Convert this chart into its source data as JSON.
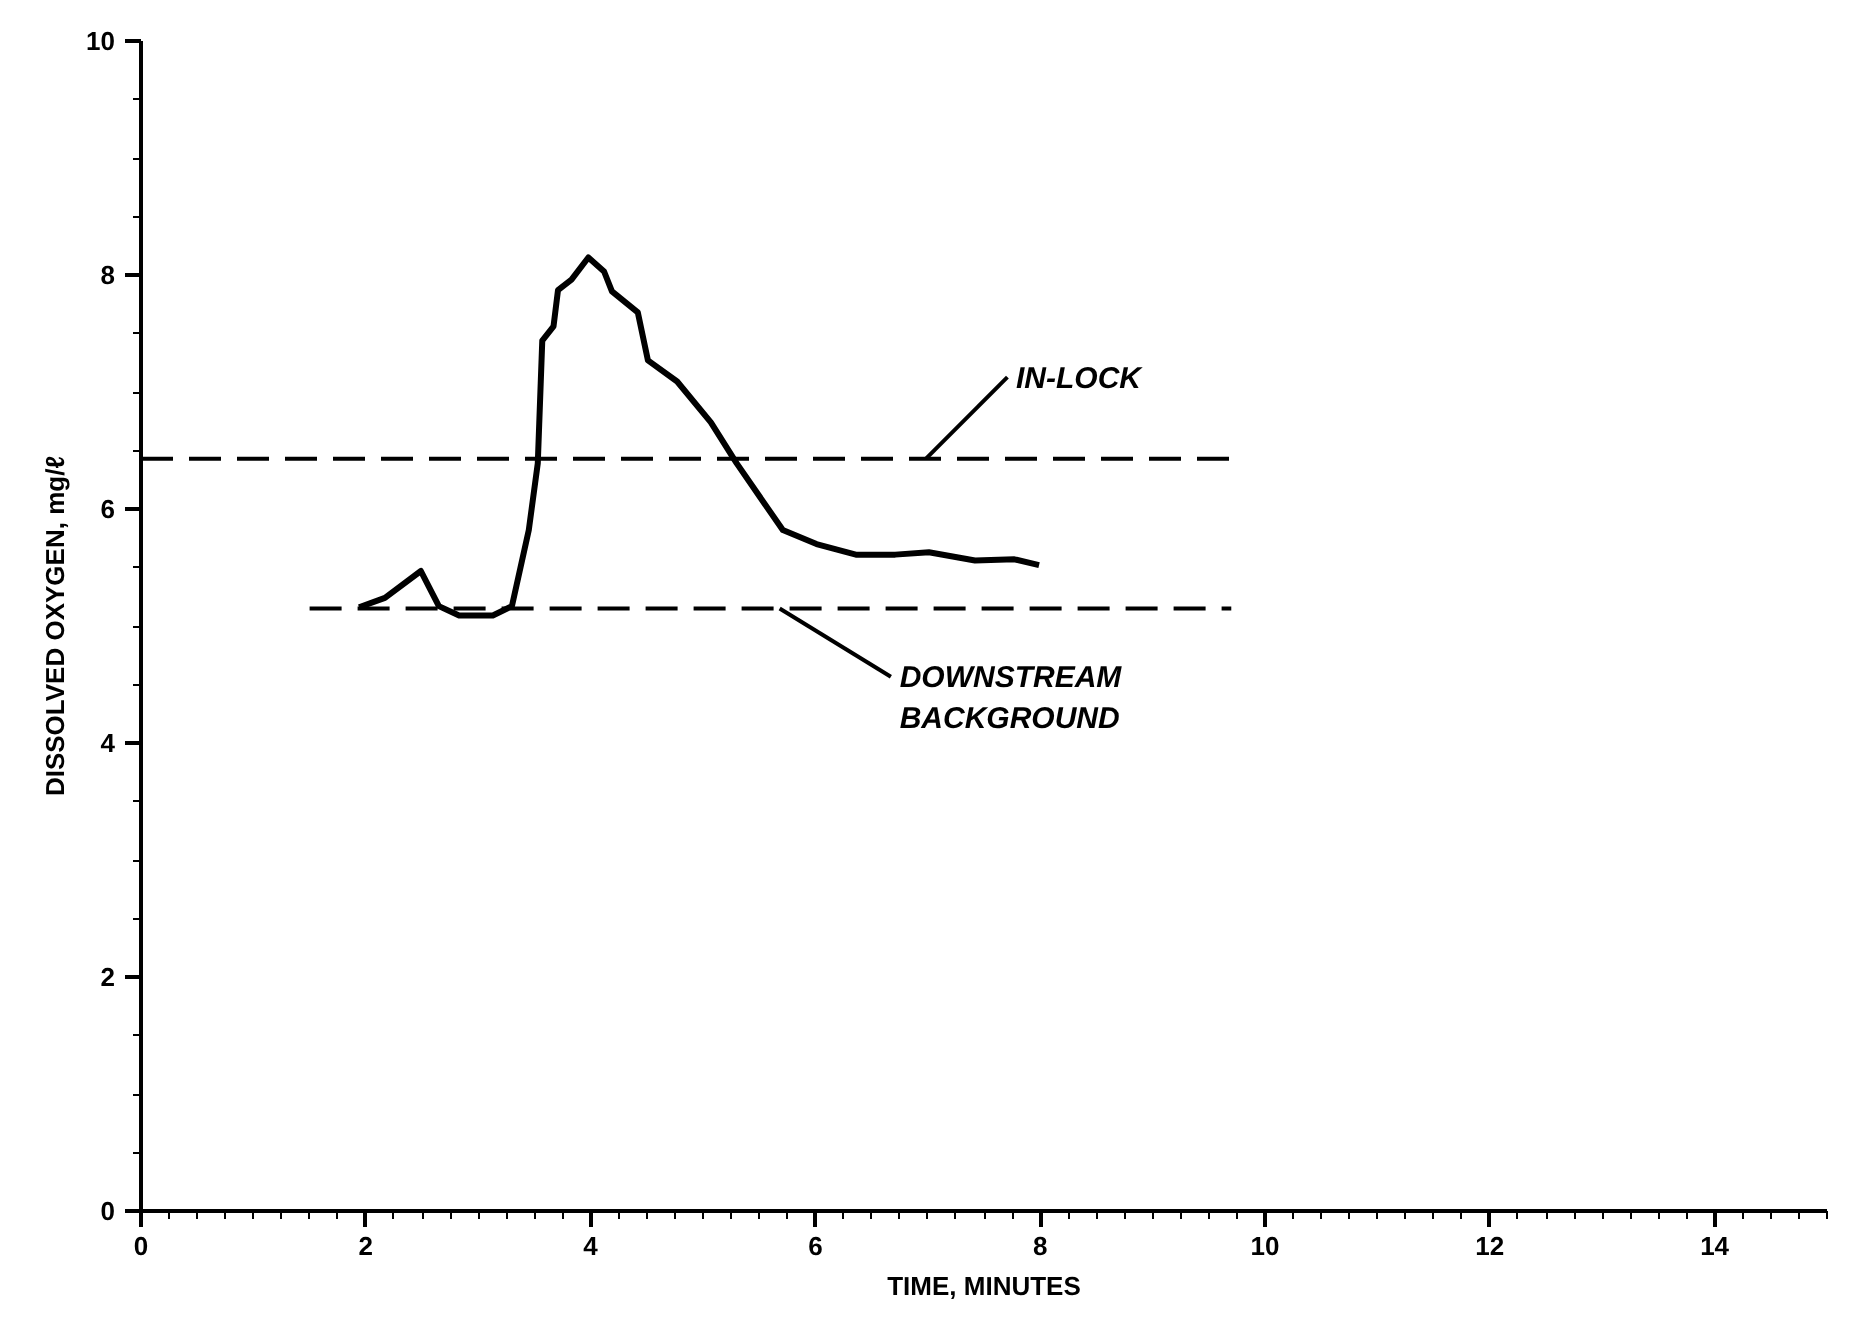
{
  "chart_data": {
    "type": "line",
    "xlabel": "TIME, MINUTES",
    "ylabel": "DISSOLVED OXYGEN, mg/ℓ",
    "xlim": [
      0,
      15
    ],
    "ylim": [
      0,
      10
    ],
    "xticks": [
      0,
      2,
      4,
      6,
      8,
      10,
      12,
      14
    ],
    "yticks": [
      0,
      2,
      4,
      6,
      8,
      10
    ],
    "grid": false,
    "marker": "none",
    "series": [
      {
        "color": "#000000",
        "line_style": "solid",
        "x": [
          1.94,
          2.17,
          2.49,
          2.65,
          2.83,
          3.13,
          3.3,
          3.45,
          3.53,
          3.57,
          3.67,
          3.71,
          3.83,
          3.98,
          4.12,
          4.19,
          4.42,
          4.51,
          4.77,
          5.07,
          5.3,
          5.71,
          6.01,
          6.36,
          6.71,
          7.01,
          7.42,
          7.77,
          7.99
        ],
        "values": [
          5.16,
          5.24,
          5.47,
          5.17,
          5.09,
          5.09,
          5.17,
          5.82,
          6.39,
          7.44,
          7.56,
          7.87,
          7.96,
          8.15,
          8.03,
          7.86,
          7.68,
          7.27,
          7.09,
          6.74,
          6.39,
          5.82,
          5.7,
          5.61,
          5.61,
          5.63,
          5.56,
          5.57,
          5.52
        ]
      },
      {
        "name": "IN-LOCK",
        "color": "#000000",
        "line_style": "dashed",
        "x": [
          0,
          9.7
        ],
        "values": [
          6.43,
          6.43
        ]
      },
      {
        "name": "DOWNSTREAM BACKGROUND",
        "color": "#000000",
        "line_style": "dashed",
        "x": [
          1.5,
          9.7
        ],
        "values": [
          5.15,
          5.15
        ]
      }
    ]
  }
}
